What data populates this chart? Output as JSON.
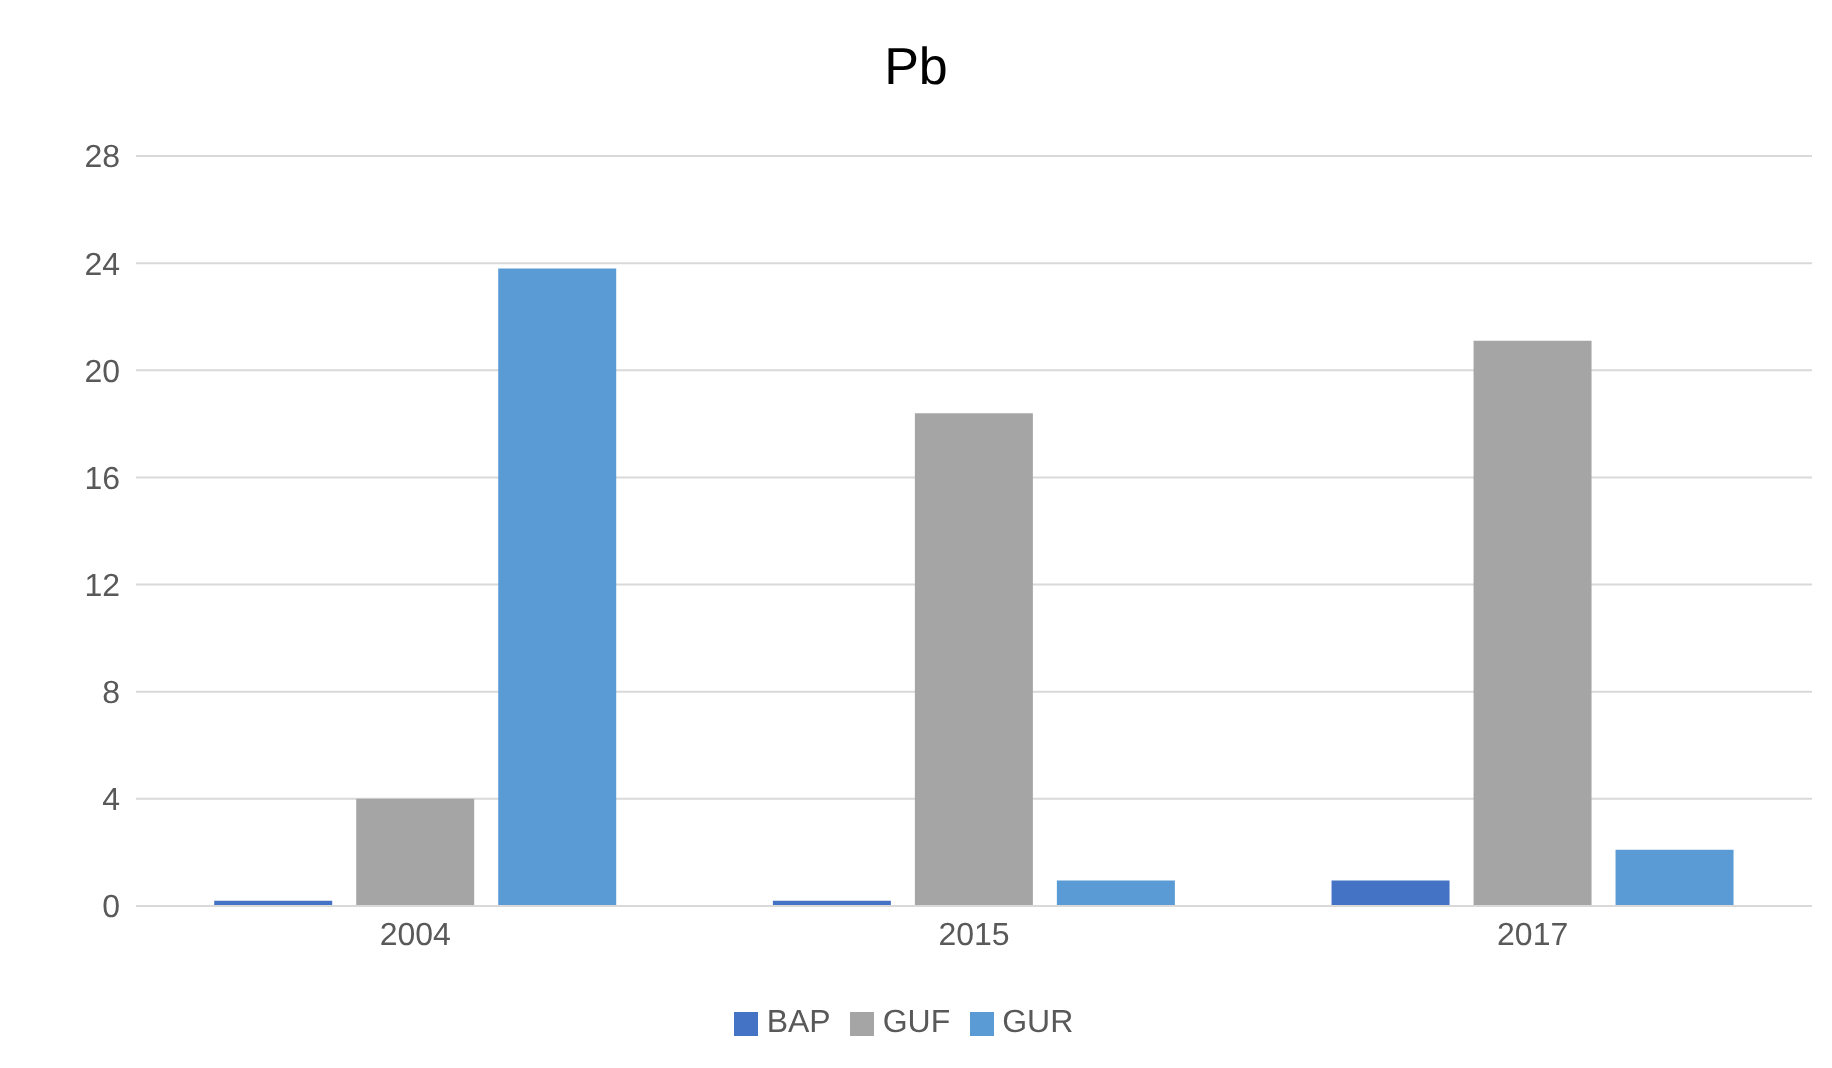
{
  "chart_data": {
    "type": "bar",
    "title": "Pb",
    "categories": [
      "2004",
      "2015",
      "2017"
    ],
    "series": [
      {
        "name": "BAP",
        "color": "#4472c4",
        "values": [
          0.2,
          0.2,
          0.95
        ]
      },
      {
        "name": "GUF",
        "color": "#a5a5a5",
        "values": [
          4.0,
          18.4,
          21.1
        ]
      },
      {
        "name": "GUR",
        "color": "#5b9bd5",
        "values": [
          23.8,
          0.95,
          2.1
        ]
      }
    ],
    "ylim": [
      0,
      28
    ],
    "yticks": [
      0,
      4,
      8,
      12,
      16,
      20,
      24,
      28
    ],
    "grid": "y",
    "legend": "bottom"
  }
}
